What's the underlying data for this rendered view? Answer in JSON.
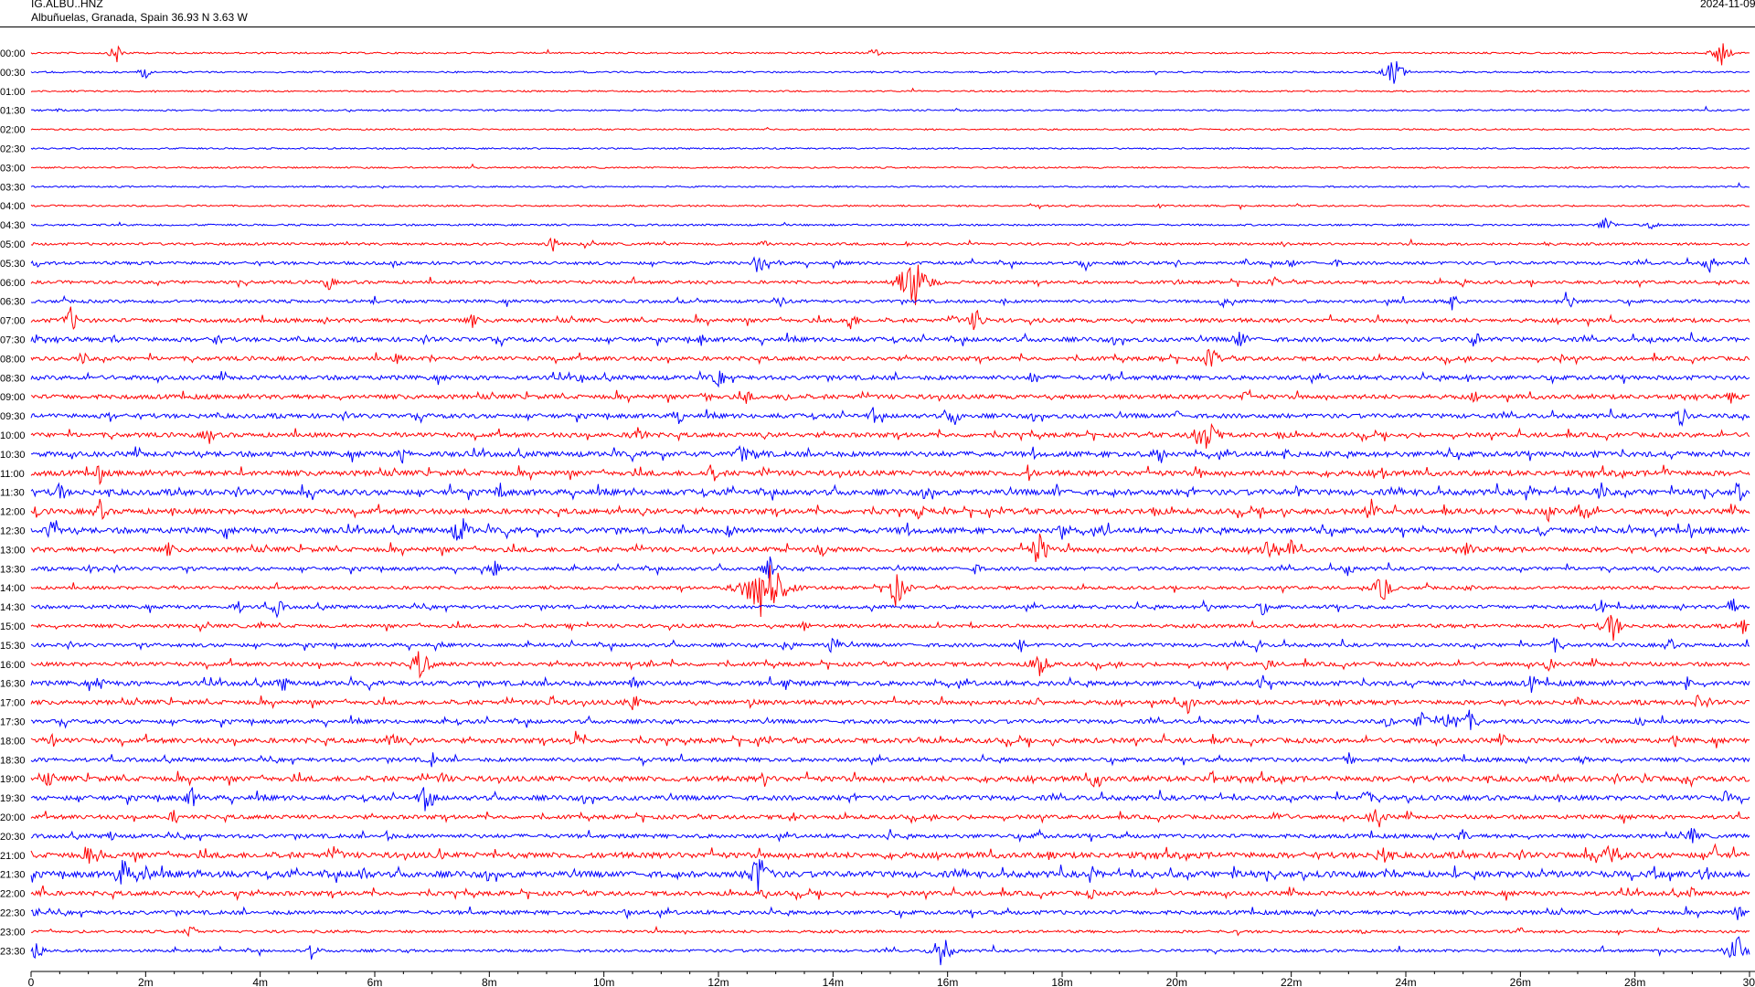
{
  "header": {
    "station": "IG.ALBU..HNZ",
    "location": "Albuñuelas, Granada, Spain  36.93 N 3.63 W",
    "date": "2024-11-09"
  },
  "chart_data": {
    "type": "line",
    "title": "IG.ALBU..HNZ",
    "subtitle": "Albuñuelas, Granada, Spain  36.93 N 3.63 W",
    "xlabel": "",
    "ylabel": "",
    "xlim": [
      0,
      30
    ],
    "x_unit": "min",
    "x_ticks": [
      "0",
      "2m",
      "4m",
      "6m",
      "8m",
      "10m",
      "12m",
      "14m",
      "16m",
      "18m",
      "20m",
      "22m",
      "24m",
      "26m",
      "28m",
      "30"
    ],
    "grid": false,
    "legend": "none",
    "colors": {
      "even_rows": "#ff0000",
      "odd_rows": "#0000ff",
      "axis": "#000000"
    },
    "rows": [
      {
        "label": "00:00",
        "activity": 0.05,
        "events": [
          [
            1.5,
            12
          ],
          [
            14.7,
            8
          ],
          [
            29.5,
            16
          ]
        ]
      },
      {
        "label": "00:30",
        "activity": 0.05,
        "events": [
          [
            2.0,
            10
          ],
          [
            23.8,
            18
          ]
        ]
      },
      {
        "label": "01:00",
        "activity": 0.02,
        "events": []
      },
      {
        "label": "01:30",
        "activity": 0.04,
        "events": [
          [
            0.5,
            4
          ]
        ]
      },
      {
        "label": "02:00",
        "activity": 0.02,
        "events": []
      },
      {
        "label": "02:30",
        "activity": 0.02,
        "events": []
      },
      {
        "label": "03:00",
        "activity": 0.02,
        "events": []
      },
      {
        "label": "03:30",
        "activity": 0.02,
        "events": []
      },
      {
        "label": "04:00",
        "activity": 0.06,
        "events": [
          [
            14.8,
            3
          ],
          [
            18.1,
            3
          ],
          [
            19.7,
            3
          ]
        ]
      },
      {
        "label": "04:30",
        "activity": 0.1,
        "events": [
          [
            27.5,
            12
          ],
          [
            28.3,
            8
          ]
        ]
      },
      {
        "label": "05:00",
        "activity": 0.25,
        "events": [
          [
            9.1,
            10
          ],
          [
            12.8,
            6
          ],
          [
            15.3,
            5
          ],
          [
            19.2,
            4
          ],
          [
            21.9,
            6
          ],
          [
            26.5,
            6
          ]
        ]
      },
      {
        "label": "05:30",
        "activity": 0.4,
        "events": [
          [
            0.1,
            6
          ],
          [
            12.7,
            14
          ],
          [
            13.1,
            6
          ],
          [
            18.4,
            10
          ],
          [
            20.0,
            6
          ],
          [
            21.2,
            6
          ],
          [
            22.0,
            8
          ],
          [
            22.8,
            6
          ],
          [
            29.3,
            12
          ]
        ]
      },
      {
        "label": "06:00",
        "activity": 0.4,
        "events": [
          [
            5.2,
            10
          ],
          [
            15.4,
            34
          ],
          [
            15.6,
            10
          ],
          [
            20.0,
            5
          ],
          [
            21.7,
            8
          ],
          [
            25.0,
            6
          ]
        ]
      },
      {
        "label": "06:30",
        "activity": 0.4,
        "events": [
          [
            6.0,
            6
          ],
          [
            13.1,
            8
          ],
          [
            17.0,
            5
          ],
          [
            20.8,
            8
          ],
          [
            24.8,
            12
          ],
          [
            26.8,
            12
          ],
          [
            26.9,
            8
          ]
        ]
      },
      {
        "label": "07:00",
        "activity": 0.6,
        "events": [
          [
            0.7,
            16
          ],
          [
            7.7,
            10
          ],
          [
            14.3,
            14
          ],
          [
            16.5,
            16
          ],
          [
            16.1,
            8
          ],
          [
            12.5,
            4
          ]
        ]
      },
      {
        "label": "07:30",
        "activity": 0.7,
        "events": [
          [
            0.1,
            6
          ],
          [
            1.5,
            8
          ],
          [
            3.2,
            10
          ],
          [
            11.7,
            8
          ],
          [
            21.1,
            14
          ],
          [
            25.2,
            12
          ],
          [
            28.3,
            6
          ]
        ]
      },
      {
        "label": "08:00",
        "activity": 0.6,
        "events": [
          [
            0.9,
            10
          ],
          [
            6.4,
            8
          ],
          [
            7.0,
            6
          ],
          [
            19.8,
            8
          ],
          [
            20.6,
            16
          ],
          [
            26.7,
            6
          ]
        ]
      },
      {
        "label": "08:30",
        "activity": 0.7,
        "events": [
          [
            9.6,
            8
          ],
          [
            12.0,
            14
          ],
          [
            17.5,
            10
          ],
          [
            18.8,
            6
          ],
          [
            25.1,
            6
          ]
        ]
      },
      {
        "label": "09:00",
        "activity": 0.7,
        "events": [
          [
            11.8,
            10
          ],
          [
            12.5,
            10
          ],
          [
            13.2,
            8
          ],
          [
            21.2,
            10
          ],
          [
            25.2,
            8
          ],
          [
            29.7,
            10
          ]
        ]
      },
      {
        "label": "09:30",
        "activity": 0.7,
        "events": [
          [
            1.4,
            8
          ],
          [
            11.3,
            12
          ],
          [
            14.7,
            10
          ],
          [
            16.1,
            14
          ],
          [
            20.0,
            8
          ],
          [
            28.8,
            14
          ]
        ]
      },
      {
        "label": "10:00",
        "activity": 0.7,
        "events": [
          [
            3.1,
            12
          ],
          [
            10.6,
            14
          ],
          [
            20.5,
            26
          ],
          [
            21.8,
            8
          ]
        ]
      },
      {
        "label": "10:30",
        "activity": 0.9,
        "events": [
          [
            6.5,
            12
          ],
          [
            12.4,
            14
          ],
          [
            12.7,
            12
          ],
          [
            19.7,
            14
          ],
          [
            21.9,
            8
          ],
          [
            27.3,
            6
          ]
        ]
      },
      {
        "label": "11:00",
        "activity": 0.9,
        "events": [
          [
            1.2,
            12
          ],
          [
            11.9,
            14
          ],
          [
            12.8,
            10
          ],
          [
            17.4,
            12
          ],
          [
            20.4,
            8
          ],
          [
            23.6,
            10
          ],
          [
            28.5,
            10
          ]
        ]
      },
      {
        "label": "11:30",
        "activity": 1.0,
        "events": [
          [
            0.5,
            14
          ],
          [
            8.2,
            12
          ],
          [
            15.7,
            12
          ],
          [
            17.9,
            10
          ],
          [
            22.1,
            10
          ],
          [
            27.4,
            14
          ],
          [
            29.8,
            14
          ]
        ]
      },
      {
        "label": "12:00",
        "activity": 0.9,
        "events": [
          [
            0.1,
            8
          ],
          [
            1.2,
            14
          ],
          [
            15.5,
            12
          ],
          [
            19.6,
            10
          ],
          [
            23.4,
            14
          ],
          [
            27.1,
            18
          ],
          [
            26.5,
            12
          ]
        ]
      },
      {
        "label": "12:30",
        "activity": 1.0,
        "events": [
          [
            0.4,
            16
          ],
          [
            7.5,
            20
          ],
          [
            12.2,
            10
          ],
          [
            15.2,
            8
          ],
          [
            18.0,
            12
          ],
          [
            24.3,
            8
          ],
          [
            26.4,
            10
          ]
        ]
      },
      {
        "label": "13:00",
        "activity": 0.8,
        "events": [
          [
            2.4,
            10
          ],
          [
            13.8,
            12
          ],
          [
            17.6,
            22
          ],
          [
            21.6,
            18
          ],
          [
            22.0,
            12
          ],
          [
            25.1,
            12
          ]
        ]
      },
      {
        "label": "13:30",
        "activity": 0.5,
        "events": [
          [
            1.1,
            10
          ],
          [
            8.1,
            10
          ],
          [
            12.9,
            14
          ],
          [
            16.5,
            8
          ],
          [
            23.0,
            10
          ],
          [
            28.4,
            6
          ]
        ]
      },
      {
        "label": "14:00",
        "activity": 0.4,
        "events": [
          [
            12.8,
            46
          ],
          [
            15.1,
            22
          ],
          [
            23.6,
            18
          ],
          [
            25.1,
            6
          ]
        ]
      },
      {
        "label": "14:30",
        "activity": 0.5,
        "events": [
          [
            3.6,
            10
          ],
          [
            4.3,
            12
          ],
          [
            20.5,
            10
          ],
          [
            21.5,
            10
          ],
          [
            27.4,
            10
          ],
          [
            29.7,
            12
          ]
        ]
      },
      {
        "label": "15:00",
        "activity": 0.5,
        "events": [
          [
            4.0,
            6
          ],
          [
            9.4,
            8
          ],
          [
            13.5,
            8
          ],
          [
            27.6,
            20
          ],
          [
            29.9,
            12
          ]
        ]
      },
      {
        "label": "15:30",
        "activity": 0.5,
        "events": [
          [
            13.2,
            12
          ],
          [
            14.0,
            14
          ],
          [
            17.3,
            10
          ],
          [
            21.4,
            10
          ],
          [
            26.6,
            10
          ],
          [
            28.6,
            10
          ]
        ]
      },
      {
        "label": "16:00",
        "activity": 0.6,
        "events": [
          [
            6.8,
            20
          ],
          [
            10.8,
            8
          ],
          [
            17.6,
            18
          ],
          [
            21.6,
            10
          ],
          [
            26.5,
            10
          ]
        ]
      },
      {
        "label": "16:30",
        "activity": 0.8,
        "events": [
          [
            1.2,
            10
          ],
          [
            4.4,
            12
          ],
          [
            10.5,
            14
          ],
          [
            13.2,
            10
          ],
          [
            21.5,
            10
          ],
          [
            26.2,
            12
          ],
          [
            28.9,
            10
          ]
        ]
      },
      {
        "label": "17:00",
        "activity": 0.7,
        "events": [
          [
            9.1,
            10
          ],
          [
            10.5,
            14
          ],
          [
            12.6,
            10
          ],
          [
            17.6,
            8
          ],
          [
            20.2,
            14
          ],
          [
            27.0,
            8
          ],
          [
            29.1,
            10
          ]
        ]
      },
      {
        "label": "17:30",
        "activity": 0.6,
        "events": [
          [
            23.7,
            10
          ],
          [
            24.3,
            16
          ],
          [
            24.8,
            18
          ],
          [
            25.1,
            14
          ],
          [
            28.1,
            8
          ]
        ]
      },
      {
        "label": "18:00",
        "activity": 0.8,
        "events": [
          [
            0.4,
            10
          ],
          [
            6.3,
            14
          ],
          [
            9.5,
            12
          ],
          [
            12.8,
            8
          ],
          [
            15.5,
            8
          ],
          [
            25.7,
            8
          ],
          [
            28.7,
            8
          ]
        ]
      },
      {
        "label": "18:30",
        "activity": 0.6,
        "events": [
          [
            7.0,
            10
          ],
          [
            10.7,
            8
          ],
          [
            23.0,
            10
          ],
          [
            27.1,
            8
          ]
        ]
      },
      {
        "label": "19:00",
        "activity": 0.9,
        "events": [
          [
            0.3,
            10
          ],
          [
            7.2,
            10
          ],
          [
            12.8,
            10
          ],
          [
            18.6,
            14
          ],
          [
            20.6,
            12
          ],
          [
            28.2,
            10
          ]
        ]
      },
      {
        "label": "19:30",
        "activity": 0.8,
        "events": [
          [
            2.8,
            14
          ],
          [
            6.9,
            18
          ],
          [
            23.3,
            12
          ],
          [
            29.6,
            10
          ]
        ]
      },
      {
        "label": "20:00",
        "activity": 0.6,
        "events": [
          [
            2.5,
            10
          ],
          [
            13.3,
            8
          ],
          [
            21.8,
            12
          ],
          [
            23.5,
            16
          ]
        ]
      },
      {
        "label": "20:30",
        "activity": 0.6,
        "events": [
          [
            1.4,
            8
          ],
          [
            6.2,
            10
          ],
          [
            15.0,
            8
          ],
          [
            17.6,
            8
          ],
          [
            25.0,
            10
          ],
          [
            29.0,
            12
          ]
        ]
      },
      {
        "label": "21:00",
        "activity": 1.0,
        "events": [
          [
            1.0,
            12
          ],
          [
            5.3,
            14
          ],
          [
            17.8,
            10
          ],
          [
            23.6,
            14
          ],
          [
            27.6,
            18
          ],
          [
            29.4,
            12
          ]
        ]
      },
      {
        "label": "21:30",
        "activity": 1.1,
        "events": [
          [
            1.6,
            20
          ],
          [
            2.0,
            16
          ],
          [
            5.8,
            12
          ],
          [
            12.7,
            26
          ],
          [
            21.0,
            10
          ],
          [
            29.2,
            14
          ]
        ]
      },
      {
        "label": "22:00",
        "activity": 0.7,
        "events": [
          [
            0.2,
            10
          ],
          [
            3.6,
            8
          ],
          [
            12.8,
            8
          ],
          [
            18.5,
            8
          ],
          [
            29.0,
            8
          ]
        ]
      },
      {
        "label": "22:30",
        "activity": 0.6,
        "events": [
          [
            0.1,
            8
          ],
          [
            10.4,
            8
          ],
          [
            29.8,
            10
          ]
        ]
      },
      {
        "label": "23:00",
        "activity": 0.3,
        "events": [
          [
            2.8,
            10
          ],
          [
            26.0,
            6
          ]
        ]
      },
      {
        "label": "23:30",
        "activity": 0.3,
        "events": [
          [
            0.1,
            12
          ],
          [
            4.9,
            12
          ],
          [
            15.9,
            20
          ],
          [
            29.8,
            22
          ]
        ]
      }
    ]
  }
}
